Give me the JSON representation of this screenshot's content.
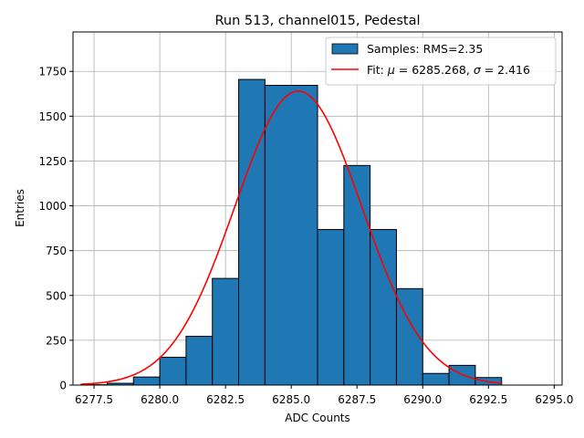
{
  "chart_data": {
    "type": "bar",
    "title": "Run 513, channel015, Pedestal",
    "xlabel": "ADC Counts",
    "ylabel": "Entries",
    "xlim": [
      6276.7,
      6295.3
    ],
    "ylim": [
      0,
      1970
    ],
    "grid": true,
    "legend_position": "top-right",
    "x_ticks": [
      6277.5,
      6280.0,
      6282.5,
      6285.0,
      6287.5,
      6290.0,
      6292.5,
      6295.0
    ],
    "x_tick_labels": [
      "6277.5",
      "6280.0",
      "6282.5",
      "6285.0",
      "6287.5",
      "6290.0",
      "6292.5",
      "6295.0"
    ],
    "y_ticks": [
      0,
      250,
      500,
      750,
      1000,
      1250,
      1500,
      1750
    ],
    "y_tick_labels": [
      "0",
      "250",
      "500",
      "750",
      "1000",
      "1250",
      "1500",
      "1750"
    ],
    "bar_color": "#1f77b4",
    "fit_color": "#ff0000",
    "bins": [
      {
        "x0": 6277.0,
        "x1": 6278.0,
        "value": 2
      },
      {
        "x0": 6278.0,
        "x1": 6279.0,
        "value": 10
      },
      {
        "x0": 6279.0,
        "x1": 6280.0,
        "value": 45
      },
      {
        "x0": 6280.0,
        "x1": 6281.0,
        "value": 155
      },
      {
        "x0": 6281.0,
        "x1": 6282.0,
        "value": 272
      },
      {
        "x0": 6282.0,
        "x1": 6283.0,
        "value": 595
      },
      {
        "x0": 6283.0,
        "x1": 6284.0,
        "value": 1705
      },
      {
        "x0": 6284.0,
        "x1": 6286.0,
        "value": 1672
      },
      {
        "x0": 6286.0,
        "x1": 6287.0,
        "value": 868
      },
      {
        "x0": 6287.0,
        "x1": 6288.0,
        "value": 1225
      },
      {
        "x0": 6288.0,
        "x1": 6289.0,
        "value": 868
      },
      {
        "x0": 6289.0,
        "x1": 6290.0,
        "value": 538
      },
      {
        "x0": 6290.0,
        "x1": 6291.0,
        "value": 65
      },
      {
        "x0": 6291.0,
        "x1": 6292.0,
        "value": 110
      },
      {
        "x0": 6292.0,
        "x1": 6293.0,
        "value": 42
      }
    ],
    "fit": {
      "mu": 6285.268,
      "sigma": 2.416,
      "amplitude": 1640,
      "x_range": [
        6277.0,
        6293.0
      ]
    },
    "legend": {
      "samples_label": "Samples: RMS=2.35",
      "fit_prefix": "Fit: ",
      "mu_symbol": "μ",
      "mu_text": " = 6285.268, ",
      "sigma_symbol": "σ",
      "sigma_text": " = 2.416"
    }
  }
}
